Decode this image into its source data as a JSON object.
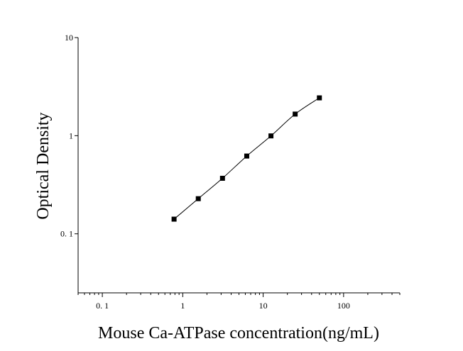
{
  "chart_data": {
    "type": "scatter",
    "title": "",
    "xlabel": "Mouse Ca-ATPase concentration(ng/mL)",
    "ylabel": "Optical Density",
    "x_scale": "log",
    "y_scale": "log",
    "xlim": [
      0.05,
      500
    ],
    "ylim": [
      0.025,
      10
    ],
    "x_ticks": [
      0.1,
      1,
      10,
      100
    ],
    "x_tick_labels": [
      "0. 1",
      "1",
      "10",
      "100"
    ],
    "y_ticks": [
      0.1,
      1,
      10
    ],
    "y_tick_labels": [
      "0. 1",
      "1",
      "10"
    ],
    "grid": false,
    "legend": "none",
    "marker": "square",
    "marker_color": "#000000",
    "line_color": "#000000",
    "series": [
      {
        "x": [
          0.78,
          1.56,
          3.12,
          6.25,
          12.5,
          25,
          50
        ],
        "y": [
          0.141,
          0.228,
          0.368,
          0.62,
          0.995,
          1.66,
          2.43
        ]
      }
    ]
  }
}
